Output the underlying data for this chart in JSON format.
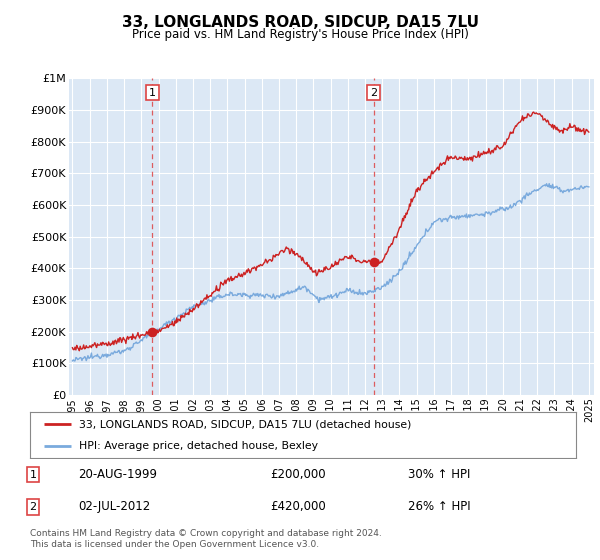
{
  "title": "33, LONGLANDS ROAD, SIDCUP, DA15 7LU",
  "subtitle": "Price paid vs. HM Land Registry's House Price Index (HPI)",
  "ylabel_ticks": [
    "£0",
    "£100K",
    "£200K",
    "£300K",
    "£400K",
    "£500K",
    "£600K",
    "£700K",
    "£800K",
    "£900K",
    "£1M"
  ],
  "ytick_values": [
    0,
    100000,
    200000,
    300000,
    400000,
    500000,
    600000,
    700000,
    800000,
    900000,
    1000000
  ],
  "ylim": [
    0,
    1000000
  ],
  "xlim_start": 1994.8,
  "xlim_end": 2025.3,
  "plot_bg_color": "#dce8f5",
  "grid_color": "#ffffff",
  "transaction1_x": 1999.64,
  "transaction1_y": 200000,
  "transaction2_x": 2012.5,
  "transaction2_y": 420000,
  "legend_entry1": "33, LONGLANDS ROAD, SIDCUP, DA15 7LU (detached house)",
  "legend_entry2": "HPI: Average price, detached house, Bexley",
  "annotation1_date": "20-AUG-1999",
  "annotation1_price": "£200,000",
  "annotation1_hpi": "30% ↑ HPI",
  "annotation2_date": "02-JUL-2012",
  "annotation2_price": "£420,000",
  "annotation2_hpi": "26% ↑ HPI",
  "footer": "Contains HM Land Registry data © Crown copyright and database right 2024.\nThis data is licensed under the Open Government Licence v3.0.",
  "red_color": "#cc2222",
  "blue_color": "#7aaadd",
  "dashed_color": "#dd4444"
}
